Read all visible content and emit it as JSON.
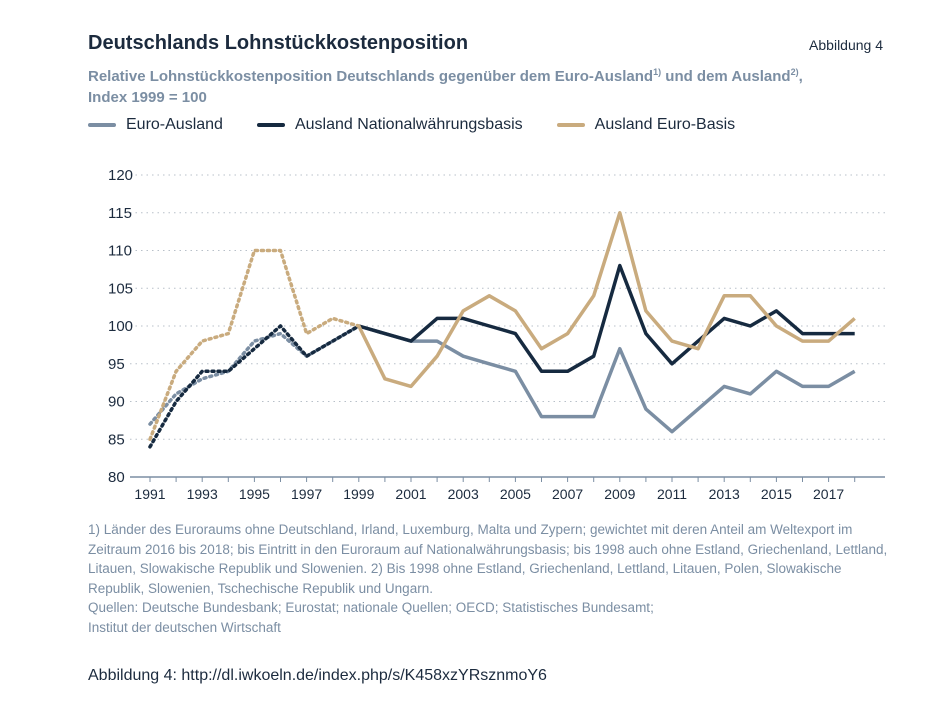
{
  "header": {
    "title": "Deutschlands Lohnstückkostenposition",
    "figure_label": "Abbildung 4",
    "subtitle_part1": "Relative Lohnstückkostenposition Deutschlands gegenüber dem Euro-Ausland",
    "subtitle_sup1": "1)",
    "subtitle_part2": " und dem Ausland",
    "subtitle_sup2": "2)",
    "subtitle_part3": ", Index 1999 = 100"
  },
  "footnote": {
    "text": "1) Länder des Euroraums ohne Deutschland, Irland, Luxemburg, Malta und Zypern; gewichtet mit deren Anteil am Weltexport im Zeitraum 2016 bis 2018; bis Eintritt in den Euroraum auf Nationalwährungsbasis; bis 1998 auch ohne Estland, Griechenland, Lettland, Litauen, Slowakische Republik und Slowenien. 2) Bis 1998 ohne Estland, Griechenland, Lettland, Litauen, Polen, Slowakische Republik, Slowenien, Tschechische Republik und Ungarn.",
    "sources": "Quellen: Deutsche Bundesbank; Eurostat; nationale Quellen; OECD; Statistisches Bundesamt;\nInstitut der deutschen Wirtschaft"
  },
  "caption": "Abbildung 4: http://dl.iwkoeln.de/index.php/s/K458xzYRsznmoY6",
  "colors": {
    "euro_ausland": "#7b8ea3",
    "ausland_national": "#162a40",
    "ausland_euro": "#c9ab7e",
    "grid": "#b8c0c9",
    "axis": "#7b8ea3"
  },
  "chart_data": {
    "type": "line",
    "x": [
      1991,
      1992,
      1993,
      1994,
      1995,
      1996,
      1997,
      1998,
      1999,
      2000,
      2001,
      2002,
      2003,
      2004,
      2005,
      2006,
      2007,
      2008,
      2009,
      2010,
      2011,
      2012,
      2013,
      2014,
      2015,
      2016,
      2017,
      2018
    ],
    "ylim": [
      80,
      120
    ],
    "yticks": [
      80,
      85,
      90,
      95,
      100,
      105,
      110,
      115,
      120
    ],
    "xticks": [
      1991,
      1993,
      1995,
      1997,
      1999,
      2001,
      2003,
      2005,
      2007,
      2009,
      2011,
      2013,
      2015,
      2017
    ],
    "grid": "horizontal dotted",
    "legend_position": "top",
    "dashed_until": 1999,
    "series": [
      {
        "name": "Euro-Ausland",
        "color_key": "euro_ausland",
        "values": [
          87,
          91,
          93,
          94,
          98,
          99,
          96,
          98,
          100,
          99,
          98,
          98,
          96,
          95,
          94,
          88,
          88,
          88,
          97,
          89,
          86,
          89,
          92,
          91,
          94,
          92,
          92,
          94
        ]
      },
      {
        "name": "Ausland Nationalwährungsbasis",
        "color_key": "ausland_national",
        "values": [
          84,
          90,
          94,
          94,
          97,
          100,
          96,
          98,
          100,
          99,
          98,
          101,
          101,
          100,
          99,
          94,
          94,
          96,
          108,
          99,
          95,
          98,
          101,
          100,
          102,
          99,
          99,
          99
        ]
      },
      {
        "name": "Ausland Euro-Basis",
        "color_key": "ausland_euro",
        "values": [
          85,
          94,
          98,
          99,
          110,
          110,
          99,
          101,
          100,
          93,
          92,
          96,
          102,
          104,
          102,
          97,
          99,
          104,
          115,
          102,
          98,
          97,
          104,
          104,
          100,
          98,
          98,
          101
        ]
      }
    ]
  }
}
